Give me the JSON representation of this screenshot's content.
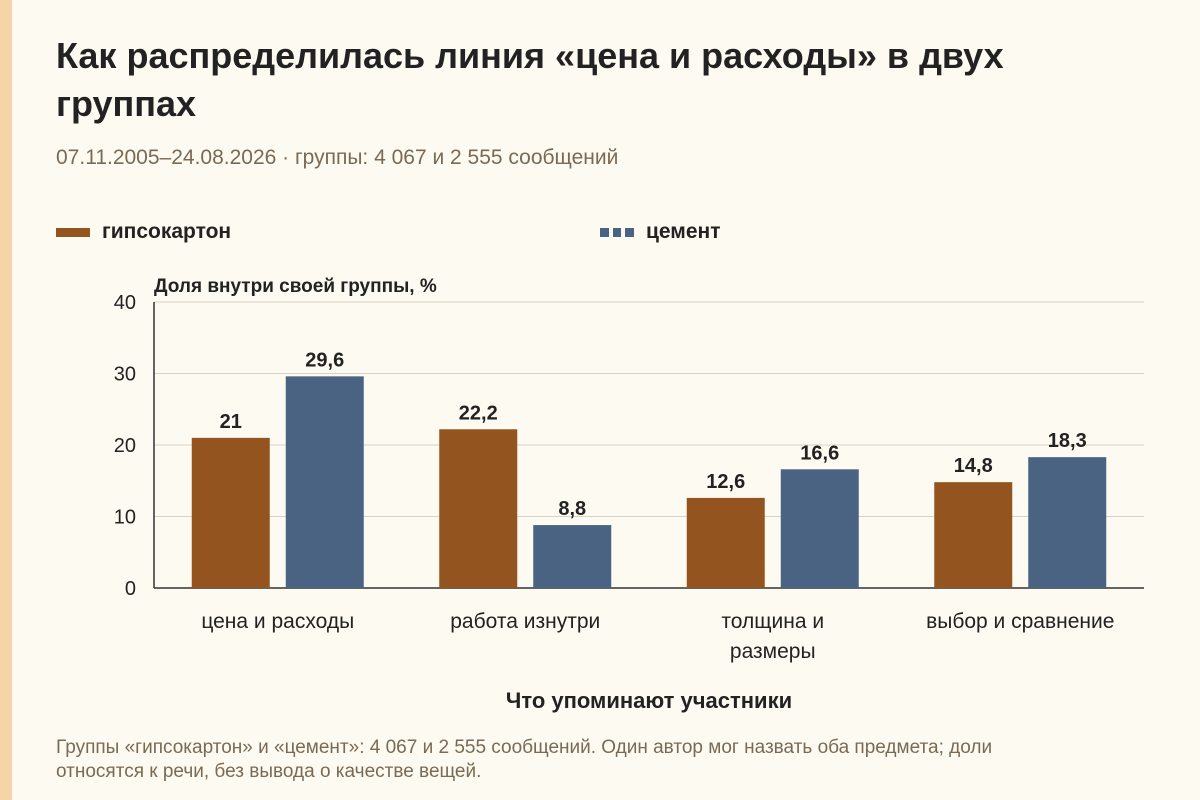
{
  "header": {
    "title": "Как распределилась линия «цена и расходы» в двух группах",
    "subtitle": "07.11.2005–24.08.2026 · группы: 4 067 и 2 555 сообщений"
  },
  "colors": {
    "accent_strip": "#f5d5a8",
    "series_0": "#94541f",
    "series_1": "#4a6382",
    "grid": "#d8d2c4",
    "text": "#222222",
    "muted_text": "#7a6a55"
  },
  "footnote": "Группы «гипсокартон» и «цемент»: 4 067 и 2 555 сообщений. Один автор мог назвать оба предмета; доли относятся к речи, без вывода о качестве вещей.",
  "chart_data": {
    "type": "bar",
    "ylabel": "Доля внутри своей группы, %",
    "xlabel": "Что упоминают участники",
    "ylim": [
      0,
      40
    ],
    "yticks": [
      0,
      10,
      20,
      30,
      40
    ],
    "grid": true,
    "legend_position": "top",
    "categories": [
      [
        "цена и расходы"
      ],
      [
        "работа изнутри"
      ],
      [
        "толщина и",
        "размеры"
      ],
      [
        "выбор и сравнение"
      ]
    ],
    "series": [
      {
        "name": "гипсокартон",
        "color": "#94541f",
        "values": [
          21,
          22.2,
          12.6,
          14.8
        ],
        "labels": [
          "21",
          "22,2",
          "12,6",
          "14,8"
        ]
      },
      {
        "name": "цемент",
        "color": "#4a6382",
        "values": [
          29.6,
          8.8,
          16.6,
          18.3
        ],
        "labels": [
          "29,6",
          "8,8",
          "16,6",
          "18,3"
        ]
      }
    ]
  }
}
